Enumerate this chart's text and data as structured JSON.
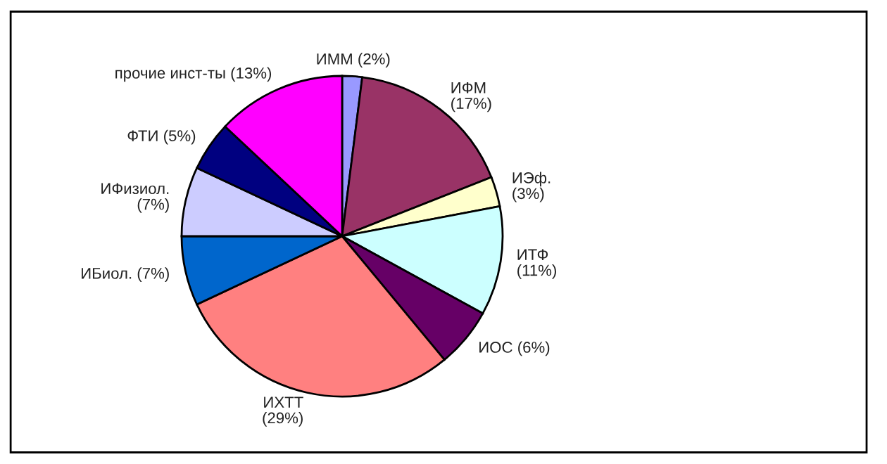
{
  "chart_data": {
    "type": "pie",
    "categories": [
      "ИММ (2%)",
      "ИФМ\n(17%)",
      "ИЭф.\n(3%)",
      "ИТФ\n(11%)",
      "ИОС (6%)",
      "ИХТТ\n(29%)",
      "ИБиол. (7%)",
      "ИФизиол.\n(7%)",
      "ФТИ (5%)",
      "прочие инст-ты (13%)"
    ],
    "values": [
      2,
      17,
      3,
      11,
      6,
      29,
      7,
      7,
      5,
      13
    ],
    "colors": [
      "#9999ff",
      "#993366",
      "#ffffcc",
      "#ccffff",
      "#660066",
      "#ff8080",
      "#0066cc",
      "#ccccff",
      "#000080",
      "#ff00ff"
    ],
    "legend": false
  }
}
